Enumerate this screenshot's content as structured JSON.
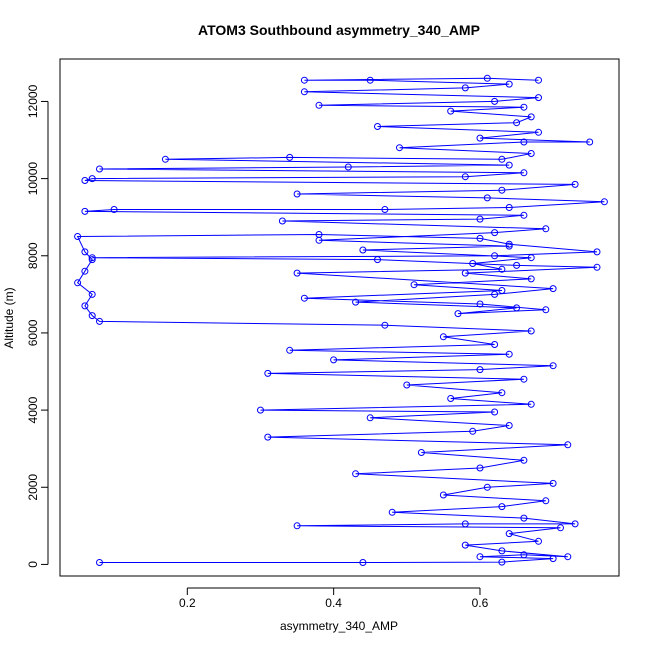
{
  "chart_data": {
    "type": "line",
    "title": "ATOM3 Southbound asymmetry_340_AMP",
    "xlabel": "asymmetry_340_AMP",
    "ylabel": "Altitude (m)",
    "xlim": [
      0.026,
      0.79
    ],
    "ylim": [
      -300,
      13100
    ],
    "x_ticks": [
      0.2,
      0.4,
      0.6
    ],
    "x_tick_labels": [
      "0.2",
      "0.4",
      "0.6"
    ],
    "y_ticks": [
      0,
      2000,
      4000,
      6000,
      8000,
      10000,
      12000
    ],
    "y_tick_labels": [
      "0",
      "2000",
      "4000",
      "6000",
      "8000",
      "10000",
      "12000"
    ],
    "grid": false,
    "legend": "none",
    "series_color": "#0000ff",
    "marker": "open-circle",
    "series": [
      {
        "points": [
          [
            0.08,
            50
          ],
          [
            0.44,
            50
          ],
          [
            0.63,
            60
          ],
          [
            0.7,
            150
          ],
          [
            0.6,
            200
          ],
          [
            0.66,
            250
          ],
          [
            0.72,
            200
          ],
          [
            0.63,
            350
          ],
          [
            0.58,
            500
          ],
          [
            0.68,
            600
          ],
          [
            0.64,
            800
          ],
          [
            0.71,
            950
          ],
          [
            0.35,
            1000
          ],
          [
            0.58,
            1050
          ],
          [
            0.73,
            1050
          ],
          [
            0.66,
            1200
          ],
          [
            0.48,
            1350
          ],
          [
            0.63,
            1500
          ],
          [
            0.69,
            1650
          ],
          [
            0.55,
            1800
          ],
          [
            0.61,
            2000
          ],
          [
            0.7,
            2100
          ],
          [
            0.43,
            2350
          ],
          [
            0.6,
            2500
          ],
          [
            0.66,
            2700
          ],
          [
            0.52,
            2900
          ],
          [
            0.72,
            3100
          ],
          [
            0.31,
            3300
          ],
          [
            0.59,
            3450
          ],
          [
            0.64,
            3600
          ],
          [
            0.45,
            3800
          ],
          [
            0.62,
            3950
          ],
          [
            0.3,
            4000
          ],
          [
            0.67,
            4150
          ],
          [
            0.56,
            4300
          ],
          [
            0.63,
            4450
          ],
          [
            0.5,
            4650
          ],
          [
            0.66,
            4800
          ],
          [
            0.31,
            4950
          ],
          [
            0.6,
            5050
          ],
          [
            0.7,
            5150
          ],
          [
            0.4,
            5300
          ],
          [
            0.64,
            5450
          ],
          [
            0.34,
            5550
          ],
          [
            0.62,
            5700
          ],
          [
            0.55,
            5900
          ],
          [
            0.67,
            6050
          ],
          [
            0.47,
            6200
          ],
          [
            0.08,
            6300
          ],
          [
            0.07,
            6450
          ],
          [
            0.06,
            6700
          ],
          [
            0.07,
            7000
          ],
          [
            0.05,
            7300
          ],
          [
            0.06,
            7600
          ],
          [
            0.07,
            7900
          ],
          [
            0.06,
            8100
          ],
          [
            0.05,
            8500
          ],
          [
            0.38,
            8550
          ],
          [
            0.6,
            8450
          ],
          [
            0.64,
            8300
          ],
          [
            0.76,
            8100
          ],
          [
            0.62,
            8000
          ],
          [
            0.07,
            7950
          ],
          [
            0.46,
            7900
          ],
          [
            0.65,
            7750
          ],
          [
            0.76,
            7700
          ],
          [
            0.58,
            7550
          ],
          [
            0.67,
            7400
          ],
          [
            0.51,
            7250
          ],
          [
            0.63,
            7100
          ],
          [
            0.36,
            6900
          ],
          [
            0.6,
            6750
          ],
          [
            0.69,
            6600
          ],
          [
            0.57,
            6500
          ],
          [
            0.65,
            6650
          ],
          [
            0.43,
            6800
          ],
          [
            0.62,
            7000
          ],
          [
            0.7,
            7150
          ],
          [
            0.35,
            7550
          ],
          [
            0.63,
            7650
          ],
          [
            0.59,
            7800
          ],
          [
            0.67,
            7950
          ],
          [
            0.44,
            8150
          ],
          [
            0.64,
            8250
          ],
          [
            0.38,
            8400
          ],
          [
            0.62,
            8600
          ],
          [
            0.69,
            8700
          ],
          [
            0.33,
            8900
          ],
          [
            0.6,
            8950
          ],
          [
            0.66,
            9050
          ],
          [
            0.06,
            9150
          ],
          [
            0.1,
            9200
          ],
          [
            0.47,
            9200
          ],
          [
            0.64,
            9250
          ],
          [
            0.77,
            9400
          ],
          [
            0.61,
            9500
          ],
          [
            0.35,
            9600
          ],
          [
            0.63,
            9700
          ],
          [
            0.73,
            9850
          ],
          [
            0.06,
            9950
          ],
          [
            0.07,
            10000
          ],
          [
            0.58,
            10050
          ],
          [
            0.66,
            10150
          ],
          [
            0.08,
            10250
          ],
          [
            0.42,
            10300
          ],
          [
            0.64,
            10350
          ],
          [
            0.17,
            10500
          ],
          [
            0.34,
            10550
          ],
          [
            0.63,
            10500
          ],
          [
            0.67,
            10650
          ],
          [
            0.49,
            10800
          ],
          [
            0.66,
            10950
          ],
          [
            0.75,
            10950
          ],
          [
            0.6,
            11050
          ],
          [
            0.68,
            11200
          ],
          [
            0.46,
            11350
          ],
          [
            0.65,
            11450
          ],
          [
            0.67,
            11600
          ],
          [
            0.56,
            11750
          ],
          [
            0.66,
            11850
          ],
          [
            0.38,
            11900
          ],
          [
            0.62,
            12000
          ],
          [
            0.68,
            12100
          ],
          [
            0.36,
            12250
          ],
          [
            0.58,
            12350
          ],
          [
            0.64,
            12450
          ],
          [
            0.45,
            12550
          ],
          [
            0.36,
            12550
          ],
          [
            0.61,
            12600
          ],
          [
            0.68,
            12550
          ]
        ]
      }
    ]
  }
}
